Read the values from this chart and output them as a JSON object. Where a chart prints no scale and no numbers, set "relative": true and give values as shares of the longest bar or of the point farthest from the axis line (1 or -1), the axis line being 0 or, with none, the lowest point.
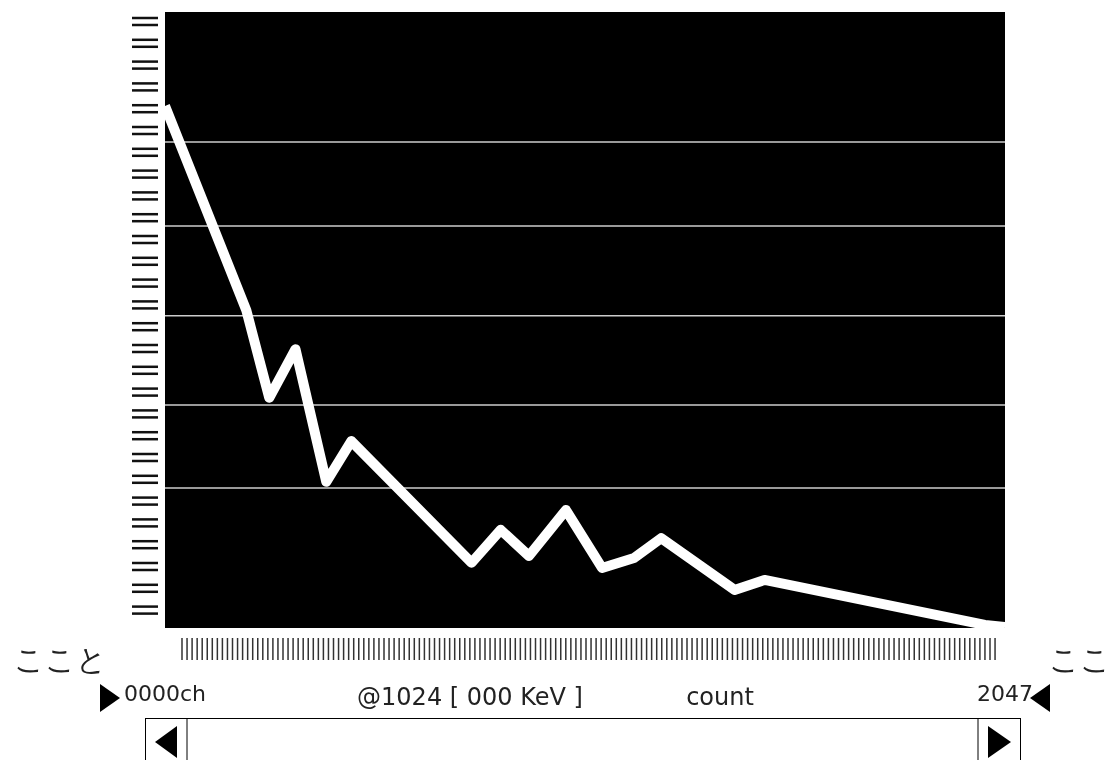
{
  "chart_data": {
    "type": "line",
    "relative": true,
    "x": [
      0,
      198,
      254,
      318,
      393,
      454,
      747,
      818,
      887,
      977,
      1065,
      1143,
      1209,
      1388,
      1461,
      1998,
      2047
    ],
    "values": [
      1.0,
      0.609,
      0.441,
      0.534,
      0.28,
      0.358,
      0.125,
      0.188,
      0.138,
      0.226,
      0.115,
      0.134,
      0.172,
      0.073,
      0.092,
      0.006,
      0.002
    ],
    "color": "#ffffff",
    "marker": "none",
    "line_style": "solid",
    "xlim": [
      0,
      2047
    ],
    "xticks": [
      {
        "value": 0,
        "label": "0000ch"
      },
      {
        "value": 2047,
        "label": "2047"
      }
    ],
    "ref_lines": [
      {
        "axis": "y",
        "value": 0.931,
        "color": "#cccccc"
      },
      {
        "axis": "y",
        "value": 0.77,
        "color": "#cccccc"
      },
      {
        "axis": "y",
        "value": 0.598,
        "color": "#cccccc"
      },
      {
        "axis": "y",
        "value": 0.427,
        "color": "#cccccc"
      },
      {
        "axis": "y",
        "value": 0.268,
        "color": "#cccccc"
      }
    ],
    "annotations": [
      "ここと",
      "ここ",
      "@1024 [ 000 KeV ]",
      "count"
    ]
  }
}
